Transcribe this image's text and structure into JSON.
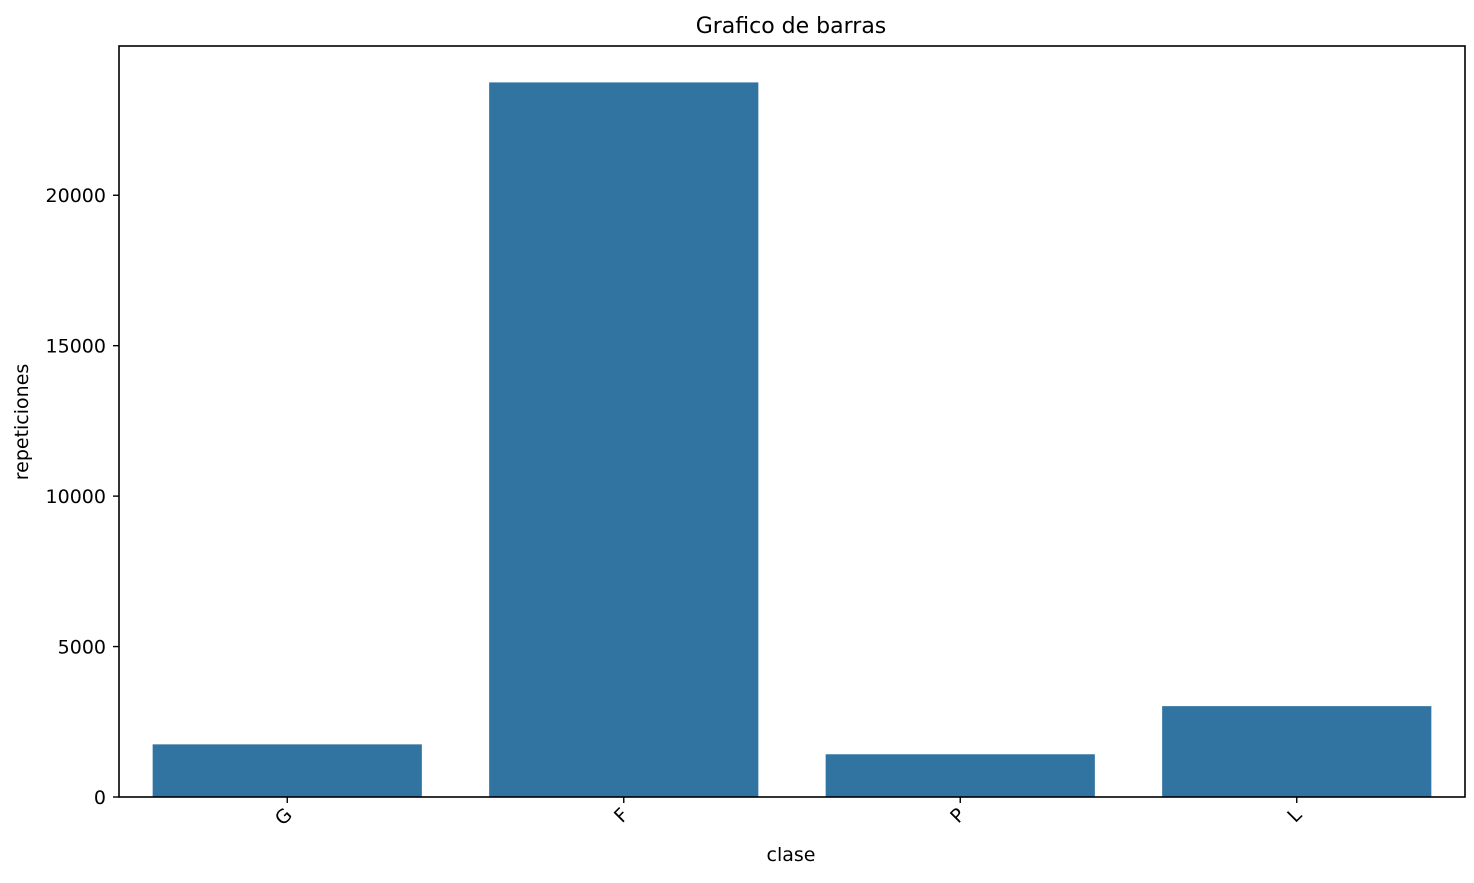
{
  "chart_data": {
    "type": "bar",
    "title": "Grafico de barras",
    "xlabel": "clase",
    "ylabel": "repeticiones",
    "categories": [
      "G",
      "F",
      "P",
      "L"
    ],
    "values": [
      1750,
      23750,
      1420,
      3020
    ],
    "ylim": [
      0,
      24960
    ],
    "yticks": [
      0,
      5000,
      10000,
      15000,
      20000
    ],
    "ytick_labels": [
      "0",
      "5000",
      "10000",
      "15000",
      "20000"
    ],
    "xtick_rotation": -45,
    "bar_color": "#3274a1",
    "grid": false,
    "legend": false
  }
}
